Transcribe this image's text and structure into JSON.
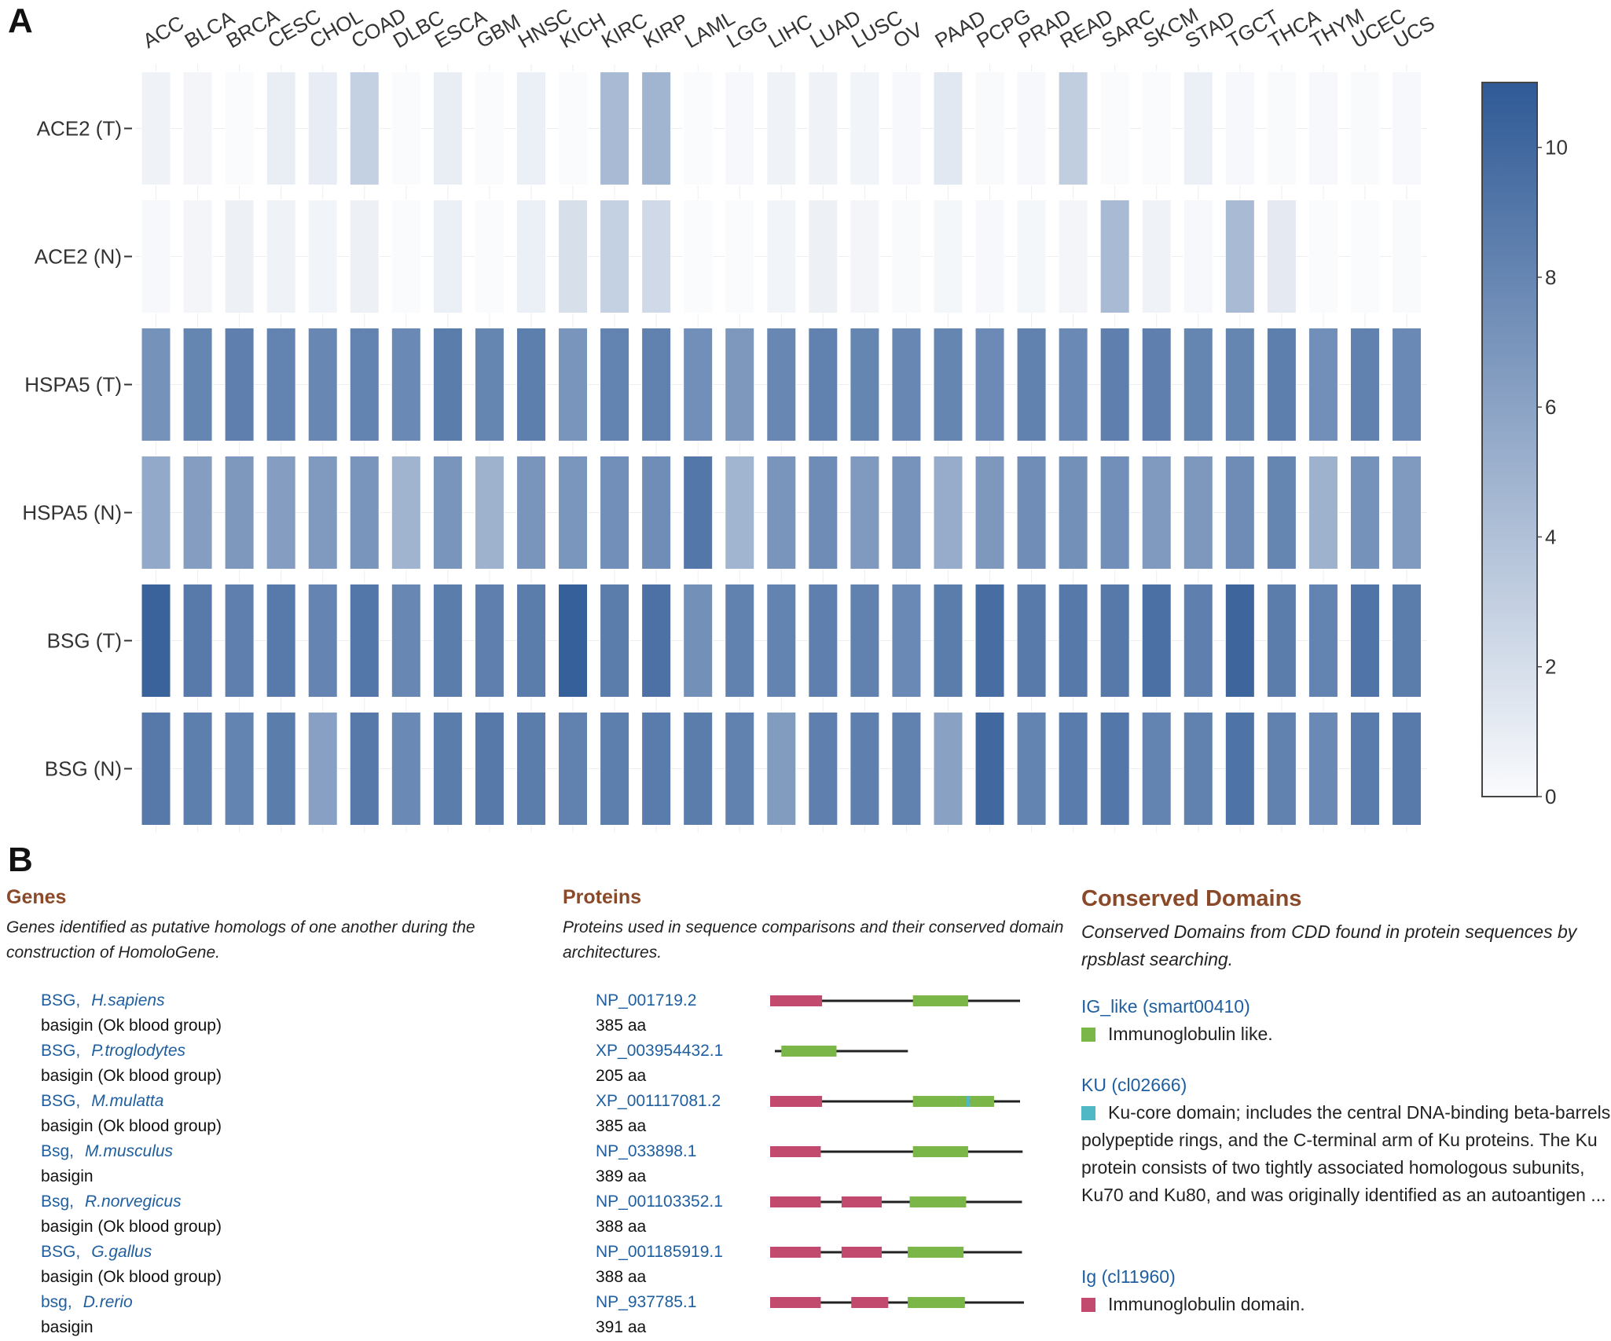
{
  "panel_a": {
    "label": "A"
  },
  "panel_b": {
    "label": "B"
  },
  "chart_data": {
    "type": "heatmap",
    "x_categories": [
      "ACC",
      "BLCA",
      "BRCA",
      "CESC",
      "CHOL",
      "COAD",
      "DLBC",
      "ESCA",
      "GBM",
      "HNSC",
      "KICH",
      "KIRC",
      "KIRP",
      "LAML",
      "LGG",
      "LIHC",
      "LUAD",
      "LUSC",
      "OV",
      "PAAD",
      "PCPG",
      "PRAD",
      "READ",
      "SARC",
      "SKCM",
      "STAD",
      "TGCT",
      "THCA",
      "THYM",
      "UCEC",
      "UCS"
    ],
    "y_categories": [
      "ACE2 (T)",
      "ACE2 (N)",
      "HSPA5 (T)",
      "HSPA5 (N)",
      "BSG (T)",
      "BSG (N)"
    ],
    "values": [
      [
        0.6,
        0.4,
        0.0,
        0.9,
        1.0,
        2.9,
        0.0,
        0.9,
        0.0,
        0.8,
        0.0,
        4.4,
        4.8,
        0.0,
        0.2,
        0.6,
        0.6,
        0.5,
        0.2,
        1.3,
        0.1,
        0.2,
        3.1,
        0.0,
        0.0,
        0.8,
        0.2,
        0.1,
        0.2,
        0.1,
        0.2
      ],
      [
        0.2,
        0.4,
        0.7,
        0.6,
        0.5,
        0.7,
        0.0,
        0.8,
        0.0,
        0.8,
        1.9,
        2.9,
        2.3,
        0.0,
        0.0,
        0.5,
        0.7,
        0.4,
        0.1,
        0.3,
        0.2,
        0.3,
        0.4,
        4.4,
        0.6,
        0.2,
        4.4,
        1.2,
        0.0,
        0.0,
        0.1
      ],
      [
        7.2,
        8.0,
        8.4,
        8.2,
        7.9,
        8.2,
        7.8,
        8.6,
        8.0,
        8.5,
        7.0,
        8.2,
        8.3,
        7.4,
        6.8,
        7.9,
        8.3,
        8.0,
        7.9,
        8.0,
        7.7,
        8.3,
        7.8,
        8.4,
        8.4,
        8.0,
        8.0,
        8.5,
        7.4,
        8.3,
        7.8
      ],
      [
        5.6,
        6.4,
        6.8,
        6.4,
        6.6,
        7.0,
        4.9,
        7.0,
        5.0,
        7.0,
        6.9,
        7.4,
        7.5,
        9.0,
        4.8,
        7.0,
        7.6,
        6.6,
        7.1,
        5.4,
        6.8,
        7.5,
        7.3,
        7.4,
        6.6,
        6.8,
        7.6,
        8.0,
        5.0,
        7.2,
        6.6
      ],
      [
        10.4,
        8.8,
        8.4,
        8.8,
        8.1,
        9.0,
        7.9,
        8.6,
        8.4,
        8.6,
        10.6,
        8.6,
        9.4,
        7.3,
        8.3,
        8.2,
        8.4,
        8.3,
        7.8,
        8.6,
        9.7,
        8.8,
        8.9,
        8.9,
        9.5,
        8.4,
        10.2,
        8.6,
        8.2,
        9.2,
        8.6
      ],
      [
        8.9,
        8.5,
        8.2,
        8.6,
        6.2,
        8.9,
        7.8,
        8.6,
        8.9,
        8.6,
        8.3,
        8.5,
        8.7,
        8.6,
        8.3,
        6.5,
        8.4,
        8.4,
        8.3,
        6.1,
        10.0,
        8.2,
        8.7,
        9.0,
        8.2,
        8.3,
        9.3,
        8.3,
        7.8,
        8.7,
        8.8
      ]
    ],
    "colorscale": {
      "low": "#fafbfd",
      "high": "#2f5a96",
      "range": [
        0,
        11
      ],
      "tick_values": [
        0,
        2,
        4,
        6,
        8,
        10
      ],
      "ticks": [
        "0",
        "2",
        "4",
        "6",
        "8",
        "10"
      ]
    }
  },
  "genes": {
    "title": "Genes",
    "description": "Genes identified as putative homologs of one another during the construction of HomoloGene.",
    "items": [
      {
        "symbol": "BSG,",
        "species": "H.sapiens",
        "name": "basigin (Ok blood group)"
      },
      {
        "symbol": "BSG,",
        "species": "P.troglodytes",
        "name": "basigin (Ok blood group)"
      },
      {
        "symbol": "BSG,",
        "species": "M.mulatta",
        "name": "basigin (Ok blood group)"
      },
      {
        "symbol": "Bsg,",
        "species": "M.musculus",
        "name": "basigin"
      },
      {
        "symbol": "Bsg,",
        "species": "R.norvegicus",
        "name": "basigin (Ok blood group)"
      },
      {
        "symbol": "BSG,",
        "species": "G.gallus",
        "name": "basigin (Ok blood group)"
      },
      {
        "symbol": "bsg,",
        "species": "D.rerio",
        "name": "basigin"
      }
    ]
  },
  "proteins": {
    "title": "Proteins",
    "description": "Proteins used in sequence comparisons and their conserved domain architectures.",
    "items": [
      {
        "accession": "NP_001719.2",
        "length": "385 aa",
        "aa": 385,
        "domains": [
          {
            "type": "ig",
            "start": 0,
            "end": 80
          },
          {
            "type": "ig_like",
            "start": 220,
            "end": 305
          }
        ]
      },
      {
        "accession": "XP_003954432.1",
        "length": "205 aa",
        "aa": 205,
        "domains": [
          {
            "type": "ig_like",
            "start": 10,
            "end": 95
          }
        ]
      },
      {
        "accession": "XP_001117081.2",
        "length": "385 aa",
        "aa": 385,
        "domains": [
          {
            "type": "ig",
            "start": 0,
            "end": 80
          },
          {
            "type": "ig_like",
            "start": 220,
            "end": 305
          },
          {
            "type": "ku",
            "start": 302,
            "end": 308
          },
          {
            "type": "ig_like",
            "start": 308,
            "end": 345
          }
        ]
      },
      {
        "accession": "NP_033898.1",
        "length": "389 aa",
        "aa": 389,
        "domains": [
          {
            "type": "ig",
            "start": 0,
            "end": 78
          },
          {
            "type": "ig_like",
            "start": 220,
            "end": 305
          }
        ]
      },
      {
        "accession": "NP_001103352.1",
        "length": "388 aa",
        "aa": 388,
        "domains": [
          {
            "type": "ig",
            "start": 0,
            "end": 78
          },
          {
            "type": "ig",
            "start": 110,
            "end": 172
          },
          {
            "type": "ig_like",
            "start": 215,
            "end": 302
          }
        ]
      },
      {
        "accession": "NP_001185919.1",
        "length": "388 aa",
        "aa": 388,
        "domains": [
          {
            "type": "ig",
            "start": 0,
            "end": 78
          },
          {
            "type": "ig",
            "start": 110,
            "end": 172
          },
          {
            "type": "ig_like",
            "start": 212,
            "end": 298
          }
        ]
      },
      {
        "accession": "NP_937785.1",
        "length": "391 aa",
        "aa": 391,
        "domains": [
          {
            "type": "ig",
            "start": 0,
            "end": 78
          },
          {
            "type": "ig",
            "start": 125,
            "end": 182
          },
          {
            "type": "ig_like",
            "start": 212,
            "end": 300
          }
        ]
      }
    ]
  },
  "domains": {
    "title": "Conserved Domains",
    "description": "Conserved Domains from CDD found in protein sequences by rpsblast searching.",
    "items": [
      {
        "name": "IG_like (smart00410)",
        "description": "Immunoglobulin like.",
        "color": "#7ab648"
      },
      {
        "name": "KU (cl02666)",
        "description": "Ku-core domain; includes the central DNA-binding beta-barrels, polypeptide rings, and the C-terminal arm of Ku proteins. The Ku protein consists of two tightly associated homologous subunits, Ku70 and Ku80, and was originally identified as an autoantigen ...",
        "color": "#4fb8c4"
      },
      {
        "name": "Ig (cl11960)",
        "description": "Immunoglobulin domain.",
        "color": "#c24a6e"
      }
    ]
  },
  "domain_colors": {
    "ig": "#c24a6e",
    "ig_like": "#7ab648",
    "ku": "#4fb8c4"
  }
}
